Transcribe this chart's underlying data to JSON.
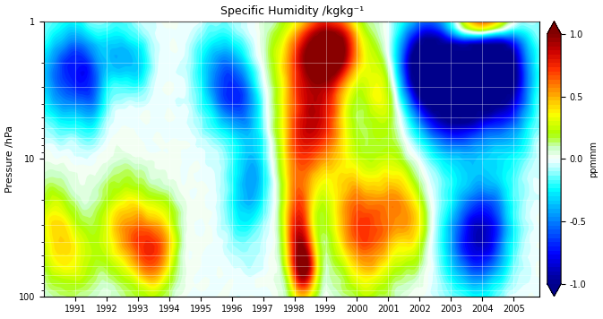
{
  "title": "Specific Humidity /kgkg⁻¹",
  "xlabel": "",
  "ylabel": "Pressure /hPa",
  "colorbar_label": "ppmmm",
  "xlim": [
    1990.0,
    2005.83
  ],
  "ylim_log": [
    1,
    100
  ],
  "vmin": -1.0,
  "vmax": 1.0,
  "colorbar_ticks": [
    -1.0,
    -0.5,
    0.0,
    0.5,
    1.0
  ],
  "xtick_years": [
    1991,
    1992,
    1993,
    1994,
    1995,
    1996,
    1997,
    1998,
    1999,
    2000,
    2001,
    2002,
    2003,
    2004,
    2005
  ],
  "figsize": [
    6.73,
    3.56
  ],
  "dpi": 100
}
